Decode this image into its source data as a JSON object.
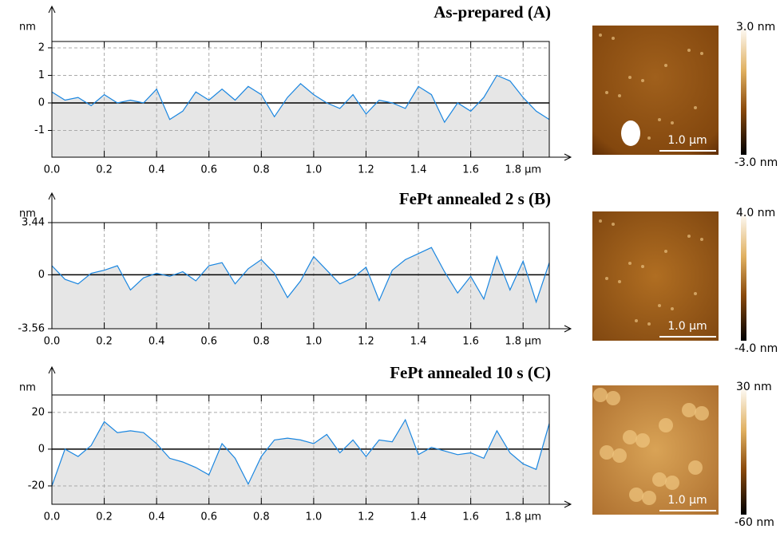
{
  "chart_data": [
    {
      "type": "line",
      "title": "As-prepared (A)",
      "y_unit": "nm",
      "x": [
        0,
        0.05,
        0.1,
        0.15,
        0.2,
        0.25,
        0.3,
        0.35,
        0.4,
        0.45,
        0.5,
        0.55,
        0.6,
        0.65,
        0.7,
        0.75,
        0.8,
        0.85,
        0.9,
        0.95,
        1.0,
        1.05,
        1.1,
        1.15,
        1.2,
        1.25,
        1.3,
        1.35,
        1.4,
        1.45,
        1.5,
        1.55,
        1.6,
        1.65,
        1.7,
        1.75,
        1.8,
        1.85,
        1.9
      ],
      "series": [
        {
          "color": "#1a86e0",
          "values": [
            0.4,
            0.1,
            0.2,
            -0.1,
            0.3,
            0.0,
            0.1,
            0.0,
            0.5,
            -0.6,
            -0.3,
            0.4,
            0.1,
            0.5,
            0.1,
            0.6,
            0.3,
            -0.5,
            0.2,
            0.7,
            0.3,
            0.0,
            -0.2,
            0.3,
            -0.4,
            0.1,
            0.0,
            -0.2,
            0.6,
            0.3,
            -0.7,
            0.0,
            -0.3,
            0.2,
            1.0,
            0.8,
            0.2,
            -0.3,
            -0.6
          ]
        }
      ],
      "xlim": [
        0,
        1.9
      ],
      "ylim": [
        -1.97,
        2.23
      ],
      "xticks": [
        {
          "value": 0,
          "label": "0.0"
        },
        0.2,
        0.4,
        0.6,
        0.8,
        {
          "value": 1,
          "label": "1.0"
        },
        1.2,
        1.4,
        1.6,
        {
          "value": 1.8,
          "label": "1.8 µm"
        }
      ],
      "yticks": [
        -1,
        0,
        1,
        2
      ],
      "grid": true,
      "scale_bar": "1.0 µm",
      "colorbar_max": "3.0 nm",
      "colorbar_min": "-3.0 nm"
    },
    {
      "type": "line",
      "title": "FePt annealed 2 s (B)",
      "y_unit": "nm",
      "x": [
        0,
        0.05,
        0.1,
        0.15,
        0.2,
        0.25,
        0.3,
        0.35,
        0.4,
        0.45,
        0.5,
        0.55,
        0.6,
        0.65,
        0.7,
        0.75,
        0.8,
        0.85,
        0.9,
        0.95,
        1.0,
        1.05,
        1.1,
        1.15,
        1.2,
        1.25,
        1.3,
        1.35,
        1.4,
        1.45,
        1.5,
        1.55,
        1.6,
        1.65,
        1.7,
        1.75,
        1.8,
        1.85,
        1.9
      ],
      "series": [
        {
          "color": "#1a86e0",
          "values": [
            0.6,
            -0.3,
            -0.6,
            0.1,
            0.3,
            0.6,
            -1.0,
            -0.2,
            0.1,
            -0.1,
            0.2,
            -0.4,
            0.6,
            0.8,
            -0.6,
            0.4,
            1.0,
            0.1,
            -1.5,
            -0.4,
            1.2,
            0.3,
            -0.6,
            -0.2,
            0.5,
            -1.7,
            0.3,
            1.0,
            1.4,
            1.8,
            0.2,
            -1.2,
            -0.1,
            -1.6,
            1.2,
            -1.0,
            0.9,
            -1.8,
            0.8
          ]
        }
      ],
      "xlim": [
        0,
        1.9
      ],
      "ylim": [
        -3.56,
        3.44
      ],
      "xticks": [
        {
          "value": 0,
          "label": "0.0"
        },
        0.2,
        0.4,
        0.6,
        0.8,
        {
          "value": 1,
          "label": "1.0"
        },
        1.2,
        1.4,
        1.6,
        {
          "value": 1.8,
          "label": "1.8 µm"
        }
      ],
      "yticks": [
        -3.56,
        0,
        3.44
      ],
      "grid": true,
      "scale_bar": "1.0 µm",
      "colorbar_max": "4.0 nm",
      "colorbar_min": "-4.0 nm"
    },
    {
      "type": "line",
      "title": "FePt annealed 10 s (C)",
      "y_unit": "nm",
      "x": [
        0,
        0.05,
        0.1,
        0.15,
        0.2,
        0.25,
        0.3,
        0.35,
        0.4,
        0.45,
        0.5,
        0.55,
        0.6,
        0.65,
        0.7,
        0.75,
        0.8,
        0.85,
        0.9,
        0.95,
        1.0,
        1.05,
        1.1,
        1.15,
        1.2,
        1.25,
        1.3,
        1.35,
        1.4,
        1.45,
        1.5,
        1.55,
        1.6,
        1.65,
        1.7,
        1.75,
        1.8,
        1.85,
        1.9
      ],
      "series": [
        {
          "color": "#1a86e0",
          "values": [
            -20,
            0,
            -4,
            2,
            15,
            9,
            10,
            9,
            3,
            -5,
            -7,
            -10,
            -14,
            3,
            -5,
            -19,
            -4,
            5,
            6,
            5,
            3,
            8,
            -2,
            5,
            -4,
            5,
            4,
            16,
            -3,
            1,
            -1,
            -3,
            -2,
            -5,
            10,
            -2,
            -8,
            -11,
            14
          ]
        }
      ],
      "xlim": [
        0,
        1.9
      ],
      "ylim": [
        -30,
        29.5
      ],
      "xticks": [
        {
          "value": 0,
          "label": "0.0"
        },
        0.2,
        0.4,
        0.6,
        0.8,
        {
          "value": 1,
          "label": "1.0"
        },
        1.2,
        1.4,
        1.6,
        {
          "value": 1.8,
          "label": "1.8 µm"
        }
      ],
      "yticks": [
        -20,
        0,
        20
      ],
      "grid": true,
      "scale_bar": "1.0 µm",
      "colorbar_max": "30 nm",
      "colorbar_min": "-60 nm"
    }
  ]
}
